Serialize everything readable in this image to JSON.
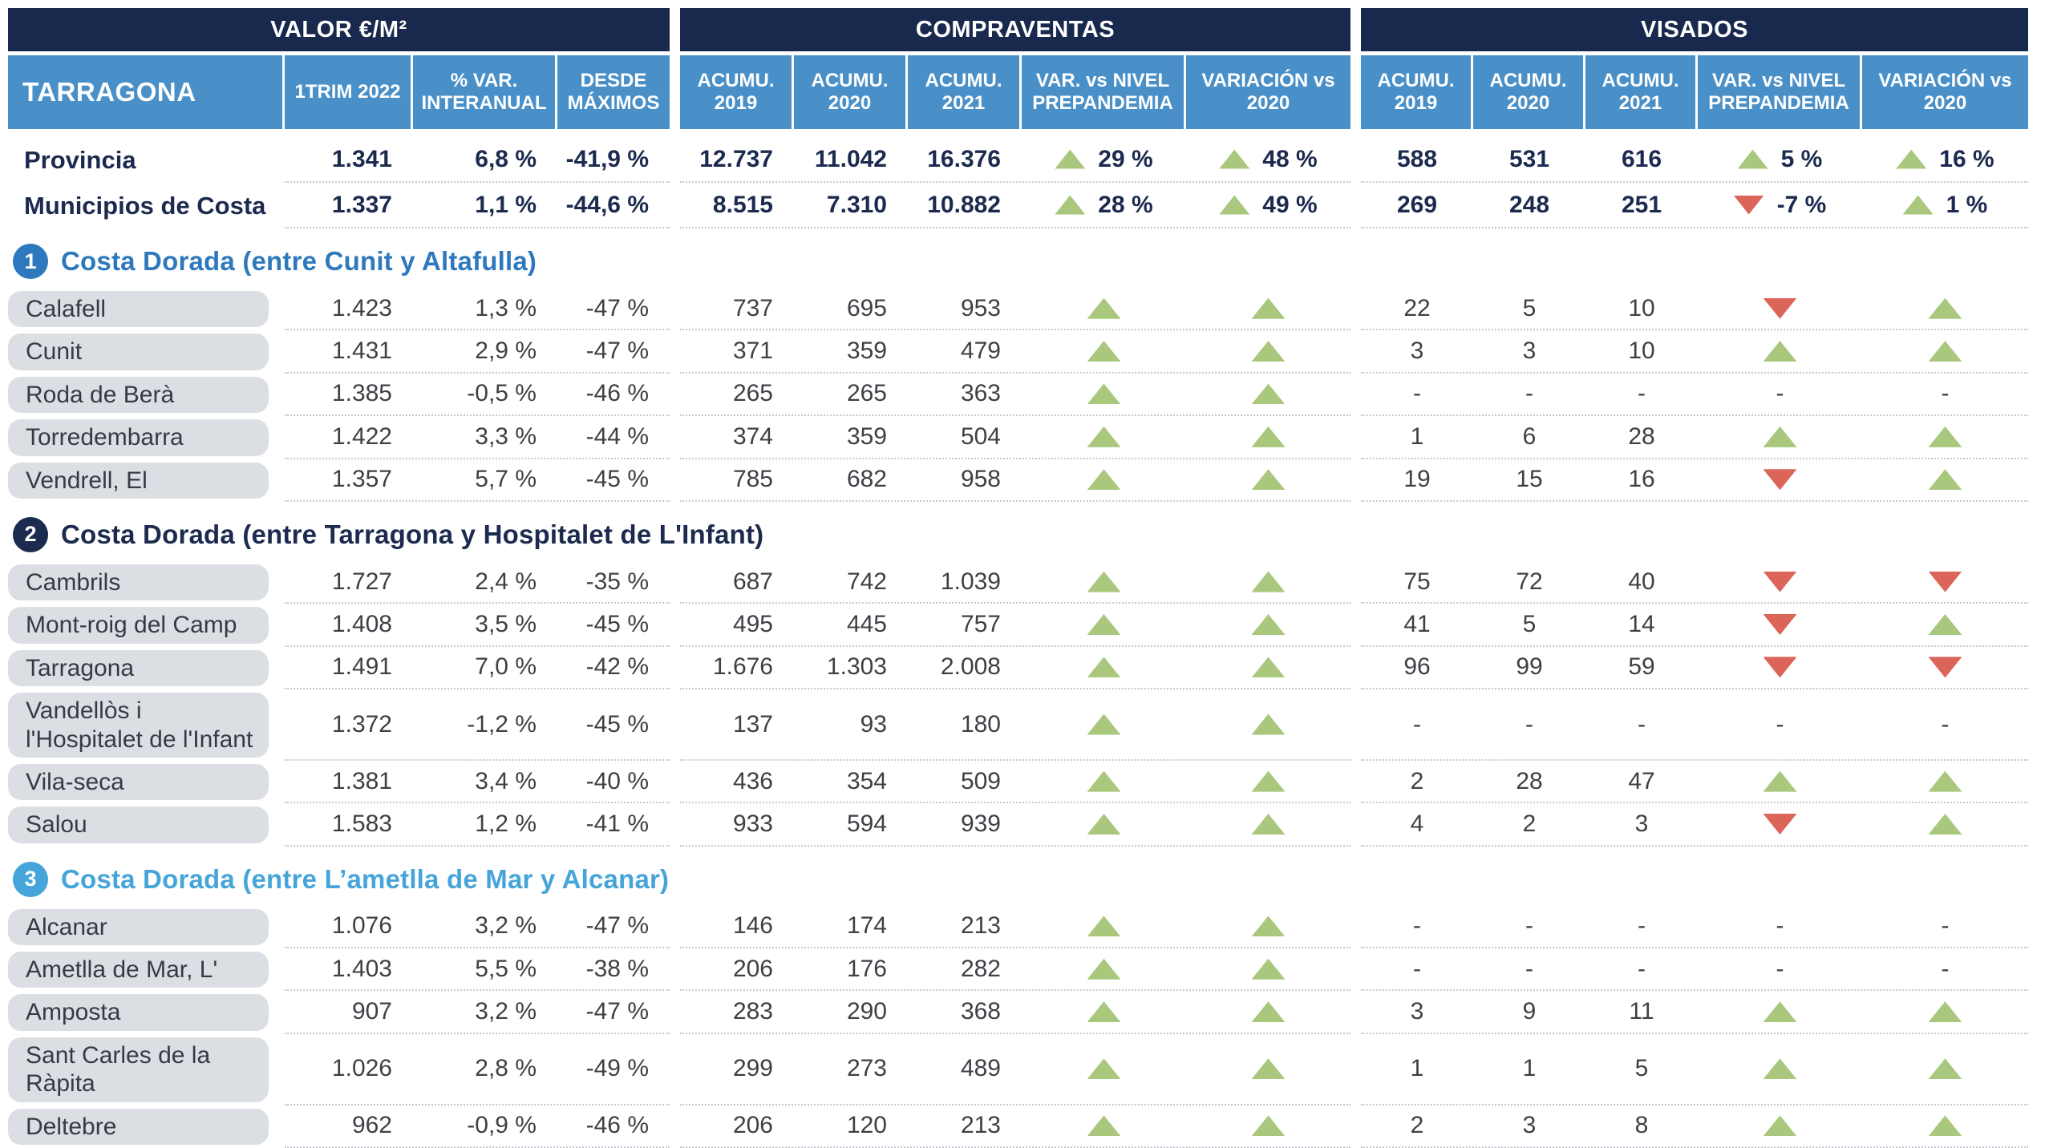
{
  "colors": {
    "navy": "#18294d",
    "header_blue": "#4a90c8",
    "section1_blue": "#2e79bd",
    "section2_navy": "#1b2a4e",
    "section3_light_blue": "#45a5da",
    "pill_gray": "#dbdfe4",
    "up_green": "#a9c87e",
    "down_red": "#dc6559"
  },
  "chart_data": {
    "type": "table",
    "region": "TARRAGONA",
    "groups": {
      "valor": "VALOR €/M²",
      "compraventas": "COMPRAVENTAS",
      "visados": "VISADOS"
    },
    "valor_cols": [
      "1TRIM 2022",
      "% VAR. INTERANUAL",
      "DESDE MÁXIMOS"
    ],
    "cv_cols": [
      "ACUMU. 2019",
      "ACUMU. 2020",
      "ACUMU. 2021",
      "VAR. vs NIVEL PREPANDEMIA",
      "VARIACIÓN vs 2020"
    ],
    "vi_cols": [
      "ACUMU. 2019",
      "ACUMU. 2020",
      "ACUMU. 2021",
      "VAR. vs NIVEL PREPANDEMIA",
      "VARIACIÓN vs 2020"
    ],
    "summary_rows": [
      {
        "name": "Provincia",
        "valor": [
          "1.341",
          "6,8 %",
          "-41,9 %"
        ],
        "cv": [
          "12.737",
          "11.042",
          "16.376"
        ],
        "cv_pre_dir": "up",
        "cv_pre_label": "29 %",
        "cv_var_dir": "up",
        "cv_var_label": "48 %",
        "vi": [
          "588",
          "531",
          "616"
        ],
        "vi_pre_dir": "up",
        "vi_pre_label": "5 %",
        "vi_var_dir": "up",
        "vi_var_label": "16 %"
      },
      {
        "name": "Municipios de Costa",
        "valor": [
          "1.337",
          "1,1 %",
          "-44,6 %"
        ],
        "cv": [
          "8.515",
          "7.310",
          "10.882"
        ],
        "cv_pre_dir": "up",
        "cv_pre_label": "28 %",
        "cv_var_dir": "up",
        "cv_var_label": "49 %",
        "vi": [
          "269",
          "248",
          "251"
        ],
        "vi_pre_dir": "down",
        "vi_pre_label": "-7 %",
        "vi_var_dir": "up",
        "vi_var_label": "1 %"
      }
    ],
    "sections": [
      {
        "number": "1",
        "title": "Costa Dorada (entre Cunit y Altafulla)",
        "color": "#2e79bd",
        "rows": [
          {
            "name": "Calafell",
            "valor": [
              "1.423",
              "1,3 %",
              "-47 %"
            ],
            "cv": [
              "737",
              "695",
              "953"
            ],
            "cv_pre": "up",
            "cv_var": "up",
            "vi": [
              "22",
              "5",
              "10"
            ],
            "vi_pre": "down",
            "vi_var": "up"
          },
          {
            "name": "Cunit",
            "valor": [
              "1.431",
              "2,9 %",
              "-47 %"
            ],
            "cv": [
              "371",
              "359",
              "479"
            ],
            "cv_pre": "up",
            "cv_var": "up",
            "vi": [
              "3",
              "3",
              "10"
            ],
            "vi_pre": "up",
            "vi_var": "up"
          },
          {
            "name": "Roda de Berà",
            "valor": [
              "1.385",
              "-0,5 %",
              "-46 %"
            ],
            "cv": [
              "265",
              "265",
              "363"
            ],
            "cv_pre": "up",
            "cv_var": "up",
            "vi": [
              "-",
              "-",
              "-"
            ],
            "vi_pre": "dash",
            "vi_var": "dash"
          },
          {
            "name": "Torredembarra",
            "valor": [
              "1.422",
              "3,3 %",
              "-44 %"
            ],
            "cv": [
              "374",
              "359",
              "504"
            ],
            "cv_pre": "up",
            "cv_var": "up",
            "vi": [
              "1",
              "6",
              "28"
            ],
            "vi_pre": "up",
            "vi_var": "up"
          },
          {
            "name": "Vendrell, El",
            "valor": [
              "1.357",
              "5,7 %",
              "-45 %"
            ],
            "cv": [
              "785",
              "682",
              "958"
            ],
            "cv_pre": "up",
            "cv_var": "up",
            "vi": [
              "19",
              "15",
              "16"
            ],
            "vi_pre": "down",
            "vi_var": "up"
          }
        ]
      },
      {
        "number": "2",
        "title": "Costa Dorada (entre Tarragona y Hospitalet de L'Infant)",
        "color": "#1b2a4e",
        "rows": [
          {
            "name": "Cambrils",
            "valor": [
              "1.727",
              "2,4 %",
              "-35 %"
            ],
            "cv": [
              "687",
              "742",
              "1.039"
            ],
            "cv_pre": "up",
            "cv_var": "up",
            "vi": [
              "75",
              "72",
              "40"
            ],
            "vi_pre": "down",
            "vi_var": "down"
          },
          {
            "name": "Mont-roig del Camp",
            "valor": [
              "1.408",
              "3,5 %",
              "-45 %"
            ],
            "cv": [
              "495",
              "445",
              "757"
            ],
            "cv_pre": "up",
            "cv_var": "up",
            "vi": [
              "41",
              "5",
              "14"
            ],
            "vi_pre": "down",
            "vi_var": "up"
          },
          {
            "name": "Tarragona",
            "valor": [
              "1.491",
              "7,0 %",
              "-42 %"
            ],
            "cv": [
              "1.676",
              "1.303",
              "2.008"
            ],
            "cv_pre": "up",
            "cv_var": "up",
            "vi": [
              "96",
              "99",
              "59"
            ],
            "vi_pre": "down",
            "vi_var": "down"
          },
          {
            "name": "Vandellòs i l'Hospitalet de l'Infant",
            "valor": [
              "1.372",
              "-1,2 %",
              "-45 %"
            ],
            "cv": [
              "137",
              "93",
              "180"
            ],
            "cv_pre": "up",
            "cv_var": "up",
            "vi": [
              "-",
              "-",
              "-"
            ],
            "vi_pre": "dash",
            "vi_var": "dash"
          },
          {
            "name": "Vila-seca",
            "valor": [
              "1.381",
              "3,4 %",
              "-40 %"
            ],
            "cv": [
              "436",
              "354",
              "509"
            ],
            "cv_pre": "up",
            "cv_var": "up",
            "vi": [
              "2",
              "28",
              "47"
            ],
            "vi_pre": "up",
            "vi_var": "up"
          },
          {
            "name": "Salou",
            "valor": [
              "1.583",
              "1,2 %",
              "-41 %"
            ],
            "cv": [
              "933",
              "594",
              "939"
            ],
            "cv_pre": "up",
            "cv_var": "up",
            "vi": [
              "4",
              "2",
              "3"
            ],
            "vi_pre": "down",
            "vi_var": "up"
          }
        ]
      },
      {
        "number": "3",
        "title": "Costa Dorada (entre L’ametlla de Mar y Alcanar)",
        "color": "#45a5da",
        "rows": [
          {
            "name": "Alcanar",
            "valor": [
              "1.076",
              "3,2 %",
              "-47 %"
            ],
            "cv": [
              "146",
              "174",
              "213"
            ],
            "cv_pre": "up",
            "cv_var": "up",
            "vi": [
              "-",
              "-",
              "-"
            ],
            "vi_pre": "dash",
            "vi_var": "dash"
          },
          {
            "name": "Ametlla de Mar, L'",
            "valor": [
              "1.403",
              "5,5 %",
              "-38 %"
            ],
            "cv": [
              "206",
              "176",
              "282"
            ],
            "cv_pre": "up",
            "cv_var": "up",
            "vi": [
              "-",
              "-",
              "-"
            ],
            "vi_pre": "dash",
            "vi_var": "dash"
          },
          {
            "name": "Amposta",
            "valor": [
              "907",
              "3,2 %",
              "-47 %"
            ],
            "cv": [
              "283",
              "290",
              "368"
            ],
            "cv_pre": "up",
            "cv_var": "up",
            "vi": [
              "3",
              "9",
              "11"
            ],
            "vi_pre": "up",
            "vi_var": "up"
          },
          {
            "name": "Sant Carles de la Ràpita",
            "valor": [
              "1.026",
              "2,8 %",
              "-49 %"
            ],
            "cv": [
              "299",
              "273",
              "489"
            ],
            "cv_pre": "up",
            "cv_var": "up",
            "vi": [
              "1",
              "1",
              "5"
            ],
            "vi_pre": "up",
            "vi_var": "up"
          },
          {
            "name": "Deltebre",
            "valor": [
              "962",
              "-0,9 %",
              "-46 %"
            ],
            "cv": [
              "206",
              "120",
              "213"
            ],
            "cv_pre": "up",
            "cv_var": "up",
            "vi": [
              "2",
              "3",
              "8"
            ],
            "vi_pre": "up",
            "vi_var": "up"
          }
        ]
      }
    ]
  }
}
